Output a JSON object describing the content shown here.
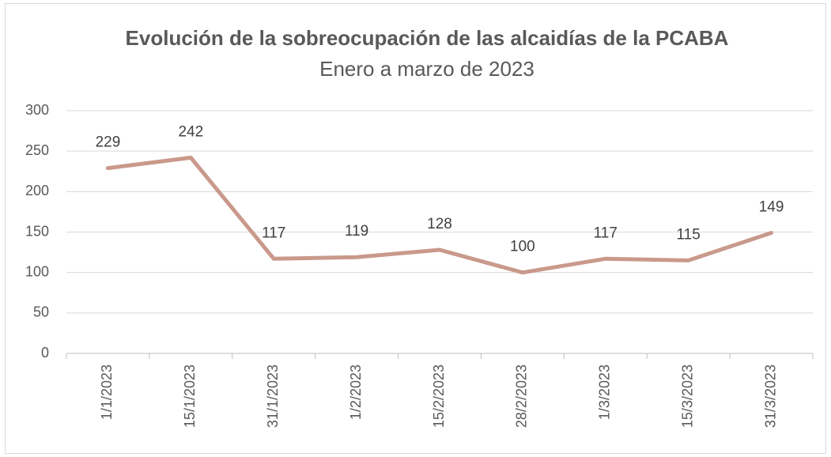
{
  "chart_data": {
    "type": "line",
    "title": "Evolución de la sobreocupación de las alcaidías de la PCABA",
    "subtitle": "Enero a marzo de 2023",
    "categories": [
      "1/1/2023",
      "15/1/2023",
      "31/1/2023",
      "1/2/2023",
      "15/2/2023",
      "28/2/2023",
      "1/3/2023",
      "15/3/2023",
      "31/3/2023"
    ],
    "values": [
      229,
      242,
      117,
      119,
      128,
      100,
      117,
      115,
      149
    ],
    "color": "#c9998b",
    "ylim": [
      0,
      300
    ],
    "yticks": [
      0,
      50,
      100,
      150,
      200,
      250,
      300
    ],
    "grid": true,
    "data_labels": true
  }
}
